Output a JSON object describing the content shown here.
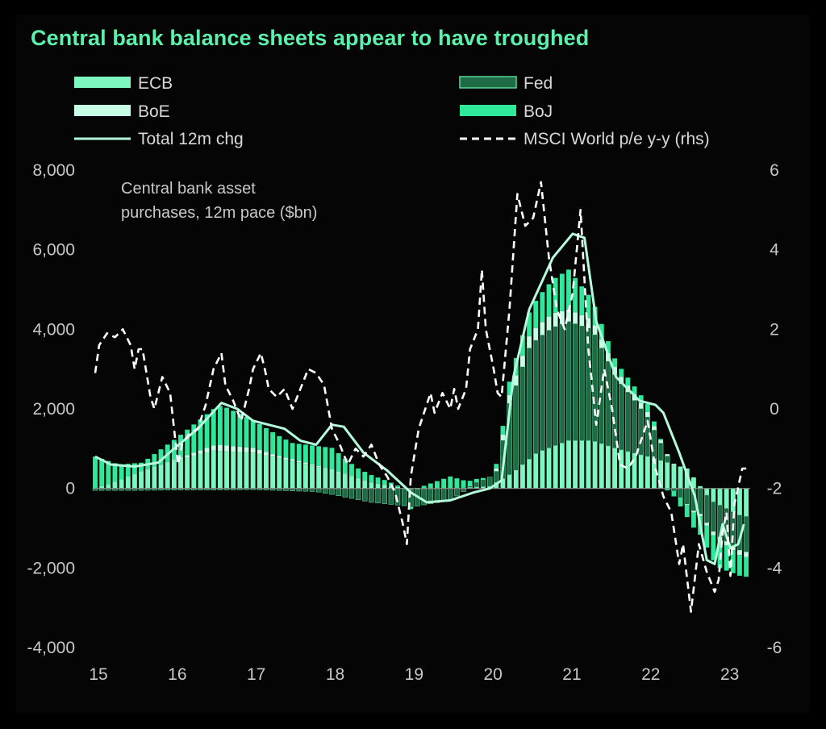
{
  "title": "Central bank balance sheets appear to have troughed",
  "colors": {
    "ecb": "#7cf7c0",
    "fed": "#1e6b45",
    "boe": "#c6ffe6",
    "boj": "#2fe89a",
    "total": "#b4fbdc",
    "msci": "#ffffff"
  },
  "legend": [
    {
      "key": "ecb",
      "label": "ECB",
      "style": "bar"
    },
    {
      "key": "fed",
      "label": "Fed",
      "style": "bar"
    },
    {
      "key": "boe",
      "label": "BoE",
      "style": "bar"
    },
    {
      "key": "boj",
      "label": "BoJ",
      "style": "bar"
    },
    {
      "key": "total",
      "label": "Total 12m chg",
      "style": "line"
    },
    {
      "key": "msci",
      "label": "MSCI World p/e y-y (rhs)",
      "style": "dash"
    }
  ],
  "chart_data": {
    "type": "bar",
    "stacked": true,
    "annotation_line1": "Central bank asset",
    "annotation_line2": "purchases, 12m pace ($bn)",
    "x_ticks": [
      "15",
      "16",
      "17",
      "18",
      "19",
      "20",
      "21",
      "22",
      "23"
    ],
    "y_left_ticks": [
      "8,000",
      "6,000",
      "4,000",
      "2,000",
      "0",
      "-2,000",
      "-4,000"
    ],
    "y_right_ticks": [
      "6",
      "4",
      "2",
      "0",
      "-2",
      "-4",
      "-6"
    ],
    "ylim_left": [
      -4000,
      8000
    ],
    "ylim_right": [
      -6,
      6
    ],
    "x_range": [
      2015.0,
      2023.3
    ],
    "series": [
      {
        "name": "ECB",
        "key": "ecb",
        "points": [
          [
            2015.0,
            0
          ],
          [
            2015.3,
            200
          ],
          [
            2015.6,
            450
          ],
          [
            2016.0,
            700
          ],
          [
            2016.5,
            950
          ],
          [
            2017.0,
            900
          ],
          [
            2017.5,
            700
          ],
          [
            2018.0,
            450
          ],
          [
            2018.5,
            150
          ],
          [
            2019.0,
            -20
          ],
          [
            2019.5,
            0
          ],
          [
            2020.0,
            50
          ],
          [
            2020.3,
            400
          ],
          [
            2020.6,
            900
          ],
          [
            2021.0,
            1200
          ],
          [
            2021.3,
            1200
          ],
          [
            2021.6,
            1000
          ],
          [
            2022.0,
            800
          ],
          [
            2022.5,
            500
          ],
          [
            2022.8,
            -300
          ],
          [
            2023.0,
            -500
          ],
          [
            2023.2,
            -700
          ]
        ]
      },
      {
        "name": "Fed",
        "key": "fed",
        "points": [
          [
            2015.0,
            -50
          ],
          [
            2015.5,
            -50
          ],
          [
            2016.0,
            -40
          ],
          [
            2016.5,
            -40
          ],
          [
            2017.0,
            -30
          ],
          [
            2017.8,
            -80
          ],
          [
            2018.0,
            -150
          ],
          [
            2018.5,
            -350
          ],
          [
            2019.0,
            -450
          ],
          [
            2019.5,
            -300
          ],
          [
            2019.8,
            100
          ],
          [
            2020.1,
            300
          ],
          [
            2020.25,
            1800
          ],
          [
            2020.5,
            2800
          ],
          [
            2020.8,
            3000
          ],
          [
            2021.0,
            3000
          ],
          [
            2021.3,
            2800
          ],
          [
            2021.6,
            1800
          ],
          [
            2022.0,
            1000
          ],
          [
            2022.3,
            0
          ],
          [
            2022.6,
            -600
          ],
          [
            2022.9,
            -800
          ],
          [
            2023.2,
            -900
          ]
        ]
      },
      {
        "name": "BoE",
        "key": "boe",
        "points": [
          [
            2015.0,
            0
          ],
          [
            2015.6,
            0
          ],
          [
            2016.0,
            20
          ],
          [
            2016.6,
            150
          ],
          [
            2017.0,
            120
          ],
          [
            2017.3,
            50
          ],
          [
            2018.0,
            20
          ],
          [
            2019.0,
            0
          ],
          [
            2020.0,
            0
          ],
          [
            2020.3,
            250
          ],
          [
            2020.8,
            350
          ],
          [
            2021.0,
            300
          ],
          [
            2021.5,
            200
          ],
          [
            2022.0,
            120
          ],
          [
            2022.4,
            0
          ],
          [
            2022.8,
            -80
          ],
          [
            2023.2,
            -120
          ]
        ]
      },
      {
        "name": "BoJ",
        "key": "boj",
        "points": [
          [
            2015.0,
            800
          ],
          [
            2015.3,
            400
          ],
          [
            2015.6,
            200
          ],
          [
            2016.0,
            500
          ],
          [
            2016.6,
            1000
          ],
          [
            2017.0,
            700
          ],
          [
            2017.5,
            400
          ],
          [
            2018.0,
            550
          ],
          [
            2018.3,
            250
          ],
          [
            2018.7,
            100
          ],
          [
            2019.0,
            -50
          ],
          [
            2019.5,
            300
          ],
          [
            2019.8,
            100
          ],
          [
            2020.0,
            0
          ],
          [
            2020.3,
            400
          ],
          [
            2020.6,
            700
          ],
          [
            2021.0,
            1000
          ],
          [
            2021.3,
            500
          ],
          [
            2021.6,
            200
          ],
          [
            2022.0,
            200
          ],
          [
            2022.3,
            -100
          ],
          [
            2022.6,
            -400
          ],
          [
            2022.9,
            -700
          ],
          [
            2023.2,
            -500
          ]
        ]
      },
      {
        "name": "Total 12m chg",
        "key": "total",
        "type": "line",
        "points": [
          [
            2015.0,
            800
          ],
          [
            2015.2,
            600
          ],
          [
            2015.5,
            550
          ],
          [
            2015.8,
            650
          ],
          [
            2016.0,
            1000
          ],
          [
            2016.3,
            1500
          ],
          [
            2016.6,
            2150
          ],
          [
            2016.8,
            2000
          ],
          [
            2017.0,
            1700
          ],
          [
            2017.4,
            1500
          ],
          [
            2017.6,
            1200
          ],
          [
            2017.8,
            1100
          ],
          [
            2018.0,
            1600
          ],
          [
            2018.15,
            1550
          ],
          [
            2018.4,
            900
          ],
          [
            2018.7,
            450
          ],
          [
            2019.0,
            -100
          ],
          [
            2019.2,
            -350
          ],
          [
            2019.5,
            -300
          ],
          [
            2019.8,
            -100
          ],
          [
            2020.0,
            0
          ],
          [
            2020.15,
            200
          ],
          [
            2020.3,
            2800
          ],
          [
            2020.5,
            4500
          ],
          [
            2020.8,
            5800
          ],
          [
            2021.05,
            6400
          ],
          [
            2021.2,
            6300
          ],
          [
            2021.35,
            4200
          ],
          [
            2021.6,
            2800
          ],
          [
            2021.9,
            2200
          ],
          [
            2022.1,
            2100
          ],
          [
            2022.2,
            1900
          ],
          [
            2022.4,
            900
          ],
          [
            2022.6,
            -200
          ],
          [
            2022.75,
            -1800
          ],
          [
            2022.85,
            -1900
          ],
          [
            2022.95,
            -900
          ],
          [
            2023.05,
            -1500
          ],
          [
            2023.15,
            -1400
          ],
          [
            2023.22,
            -900
          ]
        ]
      },
      {
        "name": "MSCI World p/e y-y (rhs)",
        "key": "msci",
        "type": "line",
        "axis": "right",
        "points": [
          [
            2015.0,
            0.9
          ],
          [
            2015.05,
            1.6
          ],
          [
            2015.15,
            1.9
          ],
          [
            2015.25,
            1.8
          ],
          [
            2015.35,
            2.0
          ],
          [
            2015.45,
            1.6
          ],
          [
            2015.5,
            1.0
          ],
          [
            2015.55,
            1.5
          ],
          [
            2015.6,
            1.5
          ],
          [
            2015.7,
            0.3
          ],
          [
            2015.75,
            0.0
          ],
          [
            2015.85,
            0.8
          ],
          [
            2015.95,
            0.4
          ],
          [
            2016.0,
            -0.5
          ],
          [
            2016.05,
            -1.4
          ],
          [
            2016.1,
            -0.9
          ],
          [
            2016.2,
            -0.6
          ],
          [
            2016.3,
            -0.5
          ],
          [
            2016.4,
            0.1
          ],
          [
            2016.5,
            1.0
          ],
          [
            2016.6,
            1.4
          ],
          [
            2016.65,
            0.6
          ],
          [
            2016.75,
            0.2
          ],
          [
            2016.85,
            -0.3
          ],
          [
            2016.95,
            0.5
          ],
          [
            2017.0,
            1.0
          ],
          [
            2017.1,
            1.4
          ],
          [
            2017.15,
            1.0
          ],
          [
            2017.2,
            0.5
          ],
          [
            2017.3,
            0.3
          ],
          [
            2017.4,
            0.5
          ],
          [
            2017.5,
            0.0
          ],
          [
            2017.6,
            0.5
          ],
          [
            2017.7,
            1.0
          ],
          [
            2017.8,
            0.9
          ],
          [
            2017.9,
            0.6
          ],
          [
            2018.0,
            -0.5
          ],
          [
            2018.1,
            -0.9
          ],
          [
            2018.2,
            -1.4
          ],
          [
            2018.3,
            -1.0
          ],
          [
            2018.4,
            -1.2
          ],
          [
            2018.5,
            -0.9
          ],
          [
            2018.6,
            -1.4
          ],
          [
            2018.7,
            -1.7
          ],
          [
            2018.8,
            -2.1
          ],
          [
            2018.9,
            -2.9
          ],
          [
            2018.95,
            -3.4
          ],
          [
            2019.0,
            -1.7
          ],
          [
            2019.1,
            -0.5
          ],
          [
            2019.25,
            0.4
          ],
          [
            2019.3,
            -0.1
          ],
          [
            2019.4,
            0.4
          ],
          [
            2019.5,
            0.0
          ],
          [
            2019.55,
            0.5
          ],
          [
            2019.6,
            0.0
          ],
          [
            2019.7,
            0.5
          ],
          [
            2019.75,
            1.5
          ],
          [
            2019.85,
            2.0
          ],
          [
            2019.9,
            3.5
          ],
          [
            2019.95,
            2.0
          ],
          [
            2020.05,
            1.0
          ],
          [
            2020.1,
            0.4
          ],
          [
            2020.15,
            0.3
          ],
          [
            2020.25,
            2.5
          ],
          [
            2020.35,
            5.4
          ],
          [
            2020.45,
            4.6
          ],
          [
            2020.55,
            4.8
          ],
          [
            2020.65,
            5.7
          ],
          [
            2020.75,
            3.8
          ],
          [
            2020.85,
            2.5
          ],
          [
            2020.95,
            2.0
          ],
          [
            2021.05,
            2.9
          ],
          [
            2021.15,
            5.0
          ],
          [
            2021.25,
            1.5
          ],
          [
            2021.35,
            -0.4
          ],
          [
            2021.45,
            1.0
          ],
          [
            2021.55,
            0.0
          ],
          [
            2021.65,
            -1.4
          ],
          [
            2021.75,
            -1.5
          ],
          [
            2021.85,
            -1.2
          ],
          [
            2022.0,
            -0.3
          ],
          [
            2022.1,
            -1.5
          ],
          [
            2022.2,
            -2.2
          ],
          [
            2022.3,
            -2.6
          ],
          [
            2022.4,
            -3.9
          ],
          [
            2022.45,
            -3.4
          ],
          [
            2022.55,
            -5.1
          ],
          [
            2022.65,
            -3.4
          ],
          [
            2022.75,
            -4.1
          ],
          [
            2022.85,
            -4.6
          ],
          [
            2022.9,
            -4.3
          ],
          [
            2022.95,
            -3.1
          ],
          [
            2023.0,
            -2.6
          ],
          [
            2023.05,
            -4.2
          ],
          [
            2023.1,
            -2.4
          ],
          [
            2023.2,
            -1.5
          ],
          [
            2023.25,
            -1.5
          ]
        ]
      }
    ]
  }
}
